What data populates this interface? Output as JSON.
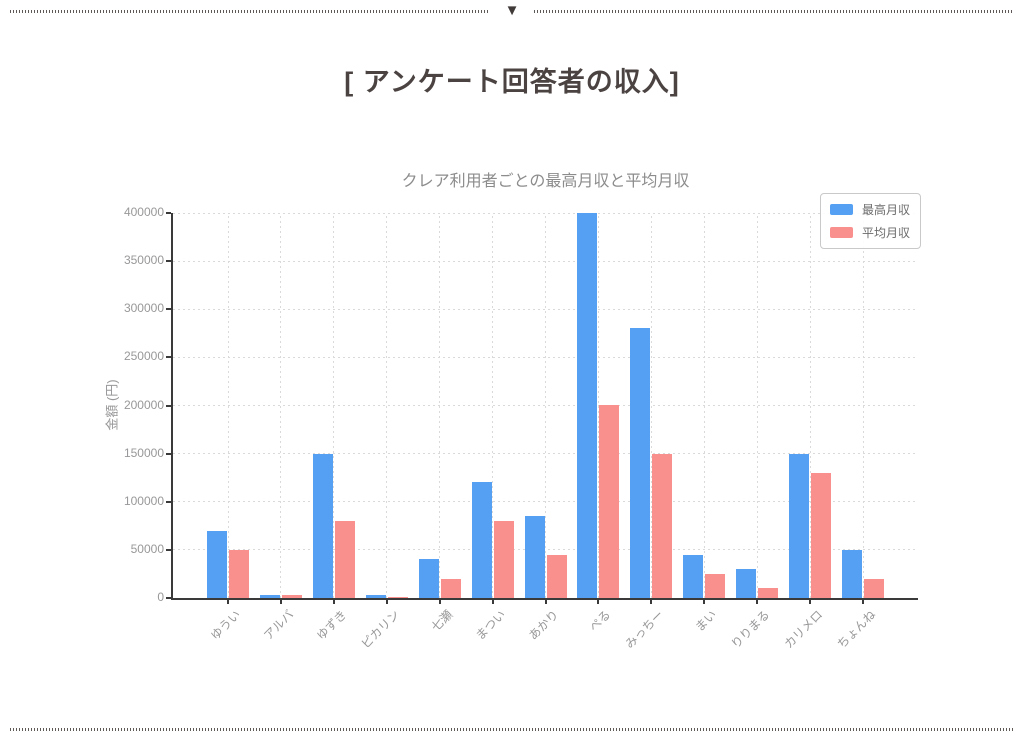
{
  "page": {
    "top_marker": "▼"
  },
  "header": {
    "title": "[ アンケート回答者の収入]"
  },
  "chart_data": {
    "type": "bar",
    "title": "クレア利用者ごとの最高月収と平均月収",
    "ylabel": "金額 (円)",
    "categories": [
      "ゆうい",
      "アルバ",
      "ゆずき",
      "ピカリン",
      "七瀬",
      "まつい",
      "あかり",
      "ぺる",
      "みっちー",
      "まい",
      "りりまる",
      "カリメロ",
      "ちょんね"
    ],
    "series": [
      {
        "name": "最高月収",
        "color": "#55a0f2",
        "values": [
          70000,
          3000,
          150000,
          3000,
          40000,
          120000,
          85000,
          400000,
          280000,
          45000,
          30000,
          150000,
          50000
        ]
      },
      {
        "name": "平均月収",
        "color": "#f9908e",
        "values": [
          50000,
          3000,
          80000,
          1000,
          20000,
          80000,
          45000,
          200000,
          150000,
          25000,
          10000,
          130000,
          20000
        ]
      }
    ],
    "ylim": [
      0,
      400000
    ],
    "ytick_step": 50000,
    "yticks": [
      0,
      50000,
      100000,
      150000,
      200000,
      250000,
      300000,
      350000,
      400000
    ],
    "grid": true,
    "legend_position": "top-right",
    "axis_color": "#3a3a3a",
    "tick_label_color": "#98989a",
    "grid_color": "#dadada"
  }
}
